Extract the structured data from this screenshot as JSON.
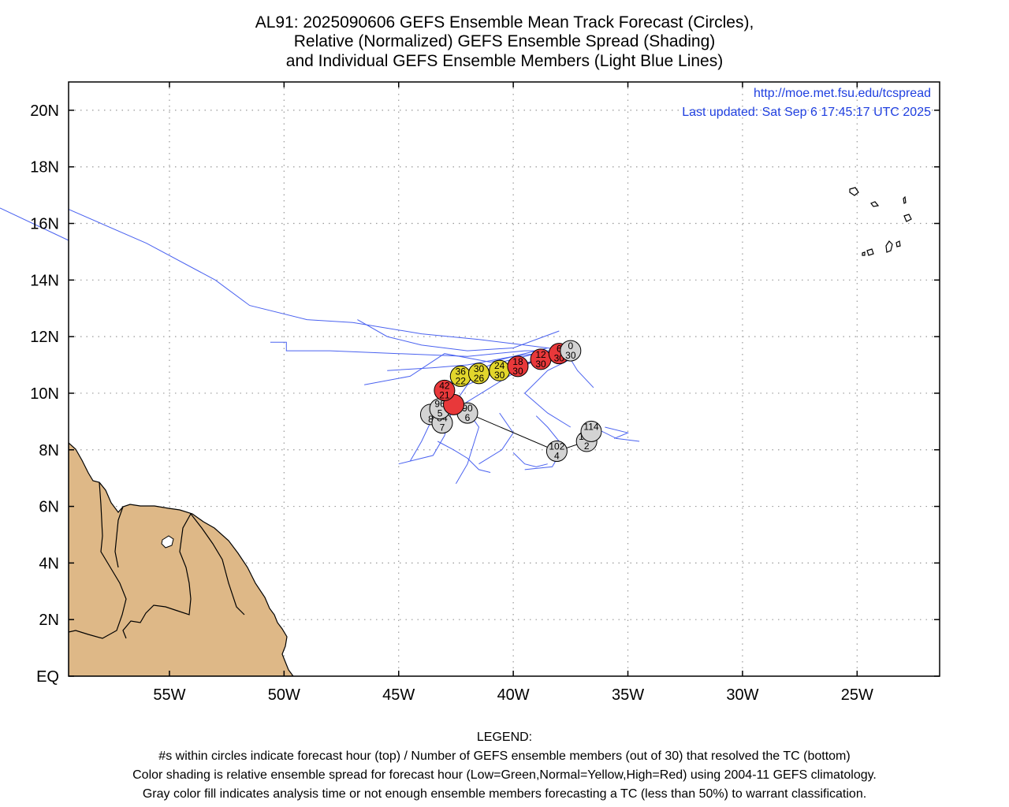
{
  "title": {
    "line1": "AL91: 2025090606 GEFS Ensemble Mean Track Forecast (Circles),",
    "line2": "Relative (Normalized) GEFS Ensemble Spread (Shading)",
    "line3": "and Individual GEFS Ensemble Members (Light Blue Lines)"
  },
  "header_links": {
    "url": "http://moe.met.fsu.edu/tcspread",
    "updated": "Last updated: Sat Sep 6 17:45:17 UTC 2025"
  },
  "axes": {
    "lat_labels": [
      "20N",
      "18N",
      "16N",
      "14N",
      "12N",
      "10N",
      "8N",
      "6N",
      "4N",
      "2N",
      "EQ"
    ],
    "lon_labels": [
      "55W",
      "50W",
      "45W",
      "40W",
      "35W",
      "30W",
      "25W"
    ]
  },
  "colors": {
    "member_lines": "#4a62f0",
    "land": "#deb887",
    "red": "#e8383a",
    "yellow": "#e2d62c",
    "gray": "#d3d3d3",
    "header_text": "#1f3fe0"
  },
  "chart_data": {
    "type": "scatter",
    "grid": true,
    "lon_range": [
      -59.4,
      -21.4
    ],
    "lat_range": [
      0,
      21
    ],
    "mean_track": [
      {
        "hour": "0",
        "members": "30",
        "lon": -37.5,
        "lat": 11.5,
        "spread": "gray"
      },
      {
        "hour": "6",
        "members": "30",
        "lon": -38.0,
        "lat": 11.4,
        "spread": "red"
      },
      {
        "hour": "12",
        "members": "30",
        "lon": -38.8,
        "lat": 11.2,
        "spread": "red"
      },
      {
        "hour": "18",
        "members": "30",
        "lon": -39.8,
        "lat": 10.95,
        "spread": "red"
      },
      {
        "hour": "24",
        "members": "30",
        "lon": -40.6,
        "lat": 10.8,
        "spread": "yellow"
      },
      {
        "hour": "30",
        "members": "26",
        "lon": -41.5,
        "lat": 10.7,
        "spread": "yellow"
      },
      {
        "hour": "36",
        "members": "22",
        "lon": -42.3,
        "lat": 10.6,
        "spread": "yellow"
      },
      {
        "hour": "42",
        "members": "21",
        "lon": -43.0,
        "lat": 10.1,
        "spread": "red"
      },
      {
        "hour": "",
        "members": "",
        "lon": -42.6,
        "lat": 9.6,
        "spread": "red"
      },
      {
        "hour": "96",
        "members": "5",
        "lon": -43.2,
        "lat": 9.45,
        "spread": "gray"
      },
      {
        "hour": "",
        "members": "8",
        "lon": -43.6,
        "lat": 9.25,
        "spread": "gray"
      },
      {
        "hour": "84",
        "members": "7",
        "lon": -43.1,
        "lat": 8.95,
        "spread": "gray"
      },
      {
        "hour": "90",
        "members": "6",
        "lon": -42.0,
        "lat": 9.3,
        "spread": "gray"
      },
      {
        "hour": "102",
        "members": "4",
        "lon": -38.1,
        "lat": 7.95,
        "spread": "gray"
      },
      {
        "hour": "120",
        "members": "2",
        "lon": -36.8,
        "lat": 8.3,
        "spread": "gray"
      },
      {
        "hour": "114",
        "members": "",
        "lon": -36.6,
        "lat": 8.65,
        "spread": "gray"
      }
    ],
    "ensemble_members": [
      [
        [
          -59.4,
          16.5
        ],
        [
          -56.0,
          15.3
        ],
        [
          -53.0,
          14.0
        ],
        [
          -51.5,
          13.1
        ],
        [
          -49.0,
          12.6
        ],
        [
          -47.0,
          12.5
        ],
        [
          -44.0,
          12.1
        ],
        [
          -41.5,
          11.9
        ],
        [
          -39.5,
          11.7
        ],
        [
          -37.5,
          11.5
        ]
      ],
      [
        [
          -50.6,
          11.8
        ],
        [
          -49.9,
          11.8
        ],
        [
          -49.9,
          11.5
        ],
        [
          -48.0,
          11.5
        ],
        [
          -45.0,
          11.4
        ],
        [
          -42.0,
          11.3
        ],
        [
          -39.5,
          11.5
        ],
        [
          -37.5,
          11.5
        ]
      ],
      [
        [
          -46.8,
          12.6
        ],
        [
          -45.5,
          12.0
        ],
        [
          -44.0,
          11.7
        ],
        [
          -42.0,
          11.5
        ],
        [
          -40.0,
          11.6
        ],
        [
          -38.0,
          12.2
        ]
      ],
      [
        [
          -45.5,
          10.8
        ],
        [
          -43.5,
          10.9
        ],
        [
          -42.0,
          11.0
        ],
        [
          -40.0,
          11.3
        ],
        [
          -38.0,
          11.5
        ]
      ],
      [
        [
          -46.5,
          10.3
        ],
        [
          -44.5,
          10.6
        ],
        [
          -43.0,
          11.4
        ],
        [
          -41.0,
          11.1
        ],
        [
          -38.5,
          11.6
        ]
      ],
      [
        [
          -45.0,
          7.5
        ],
        [
          -43.5,
          7.8
        ],
        [
          -43.0,
          8.5
        ],
        [
          -42.6,
          9.6
        ],
        [
          -42.0,
          10.3
        ],
        [
          -40.0,
          11.0
        ],
        [
          -38.0,
          11.3
        ]
      ],
      [
        [
          -44.5,
          7.6
        ],
        [
          -44.0,
          8.3
        ],
        [
          -43.3,
          9.5
        ],
        [
          -43.0,
          10.3
        ],
        [
          -41.0,
          11.0
        ],
        [
          -38.5,
          11.5
        ]
      ],
      [
        [
          -42.5,
          6.8
        ],
        [
          -42.0,
          7.5
        ],
        [
          -41.5,
          8.8
        ],
        [
          -42.2,
          9.6
        ],
        [
          -41.0,
          10.2
        ],
        [
          -39.0,
          11.2
        ]
      ],
      [
        [
          -39.5,
          7.3
        ],
        [
          -38.3,
          7.4
        ],
        [
          -37.8,
          8.1
        ],
        [
          -38.5,
          8.8
        ],
        [
          -39.0,
          9.2
        ]
      ],
      [
        [
          -36.5,
          8.8
        ],
        [
          -35.5,
          8.4
        ],
        [
          -34.5,
          8.3
        ]
      ],
      [
        [
          -36.0,
          8.8
        ],
        [
          -35.0,
          8.6
        ],
        [
          -35.6,
          8.4
        ]
      ],
      [
        [
          -37.5,
          8.8
        ],
        [
          -38.5,
          9.3
        ],
        [
          -39.5,
          10.0
        ],
        [
          -38.5,
          10.8
        ],
        [
          -37.5,
          11.2
        ]
      ],
      [
        [
          -36.5,
          10.2
        ],
        [
          -37.2,
          10.8
        ],
        [
          -37.5,
          11.2
        ]
      ],
      [
        [
          -41.5,
          7.5
        ],
        [
          -40.5,
          8.0
        ],
        [
          -40.0,
          8.6
        ],
        [
          -40.6,
          9.3
        ]
      ],
      [
        [
          -40.0,
          7.9
        ],
        [
          -39.5,
          7.5
        ],
        [
          -39.0,
          7.4
        ],
        [
          -38.5,
          7.5
        ]
      ],
      [
        [
          -43.3,
          8.3
        ],
        [
          -42.6,
          8.0
        ],
        [
          -42.0,
          7.7
        ],
        [
          -41.5,
          7.3
        ],
        [
          -41.0,
          7.2
        ]
      ]
    ]
  },
  "legend": {
    "heading": "LEGEND:",
    "line1": "#s within circles indicate forecast hour (top) / Number of GEFS ensemble members (out of 30) that resolved the TC (bottom)",
    "line2": "Color shading is relative ensemble spread for forecast hour (Low=Green,Normal=Yellow,High=Red) using 2004-11 GEFS climatology.",
    "line3": "Gray color fill indicates analysis time or not enough ensemble members forecasting a TC (less than 50%) to warrant classification."
  }
}
